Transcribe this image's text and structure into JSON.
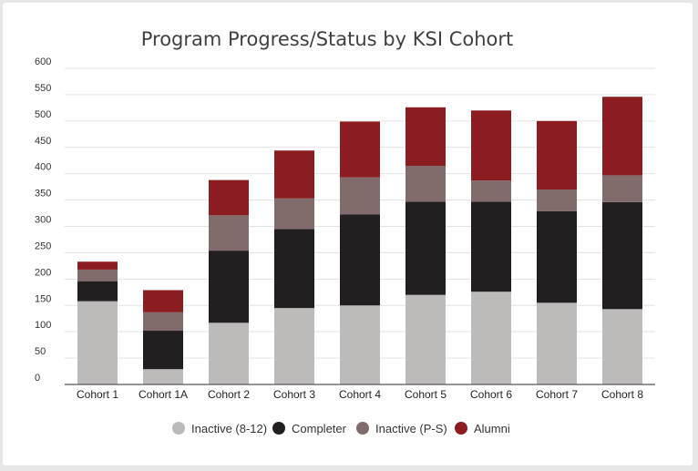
{
  "chart_data": {
    "type": "bar",
    "stacked": true,
    "title": "Program Progress/Status by KSI Cohort",
    "xlabel": "",
    "ylabel": "",
    "ylim": [
      0,
      600
    ],
    "yticks": [
      "0",
      "50",
      "100",
      "150",
      "200",
      "250",
      "300",
      "350",
      "400",
      "450",
      "500",
      "550",
      "600"
    ],
    "grid": true,
    "legend_position": "bottom",
    "categories": [
      "Cohort 1",
      "Cohort 1A",
      "Cohort 2",
      "Cohort 3",
      "Cohort 4",
      "Cohort 5",
      "Cohort 6",
      "Cohort 7",
      "Cohort 8"
    ],
    "series": [
      {
        "name": "Inactive (8-12)",
        "color": "#bdbaba",
        "values": [
          158,
          29,
          117,
          145,
          150,
          170,
          176,
          155,
          143
        ]
      },
      {
        "name": "Completer",
        "color": "#231f20",
        "values": [
          38,
          73,
          137,
          150,
          173,
          177,
          171,
          174,
          203
        ]
      },
      {
        "name": "Inactive (P-S)",
        "color": "#816b6b",
        "values": [
          22,
          35,
          67,
          58,
          70,
          68,
          40,
          41,
          51
        ]
      },
      {
        "name": "Alumni",
        "color": "#8b1c1f",
        "values": [
          15,
          42,
          67,
          91,
          106,
          111,
          133,
          130,
          149
        ]
      }
    ]
  }
}
